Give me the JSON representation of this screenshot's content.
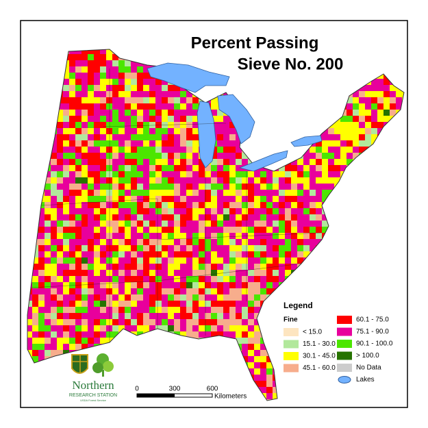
{
  "title": [
    "Percent Passing",
    "Sieve No. 200"
  ],
  "legend": {
    "title": "Legend",
    "subtitle": "Fine",
    "items": [
      {
        "label": "< 15.0",
        "color": "#fde5c0"
      },
      {
        "label": "15.1 - 30.0",
        "color": "#b2e89c"
      },
      {
        "label": "30.1 - 45.0",
        "color": "#ffff00"
      },
      {
        "label": "45.1 - 60.0",
        "color": "#f7ad8c"
      },
      {
        "label": "60.1 - 75.0",
        "color": "#ff0000"
      },
      {
        "label": "75.1 - 90.0",
        "color": "#e8009c"
      },
      {
        "label": "90.1 - 100.0",
        "color": "#4ce600"
      },
      {
        "label": "> 100.0",
        "color": "#267300"
      },
      {
        "label": "No Data",
        "color": "#cccccc"
      },
      {
        "label": "Lakes",
        "color": "#73b2ff"
      }
    ]
  },
  "scale_bar": {
    "labels": [
      "0",
      "300",
      "600"
    ],
    "unit": "Kilometers"
  },
  "logo": {
    "name": "Northern",
    "station": "RESEARCH STATION",
    "agency": "USDA Forest Service"
  }
}
